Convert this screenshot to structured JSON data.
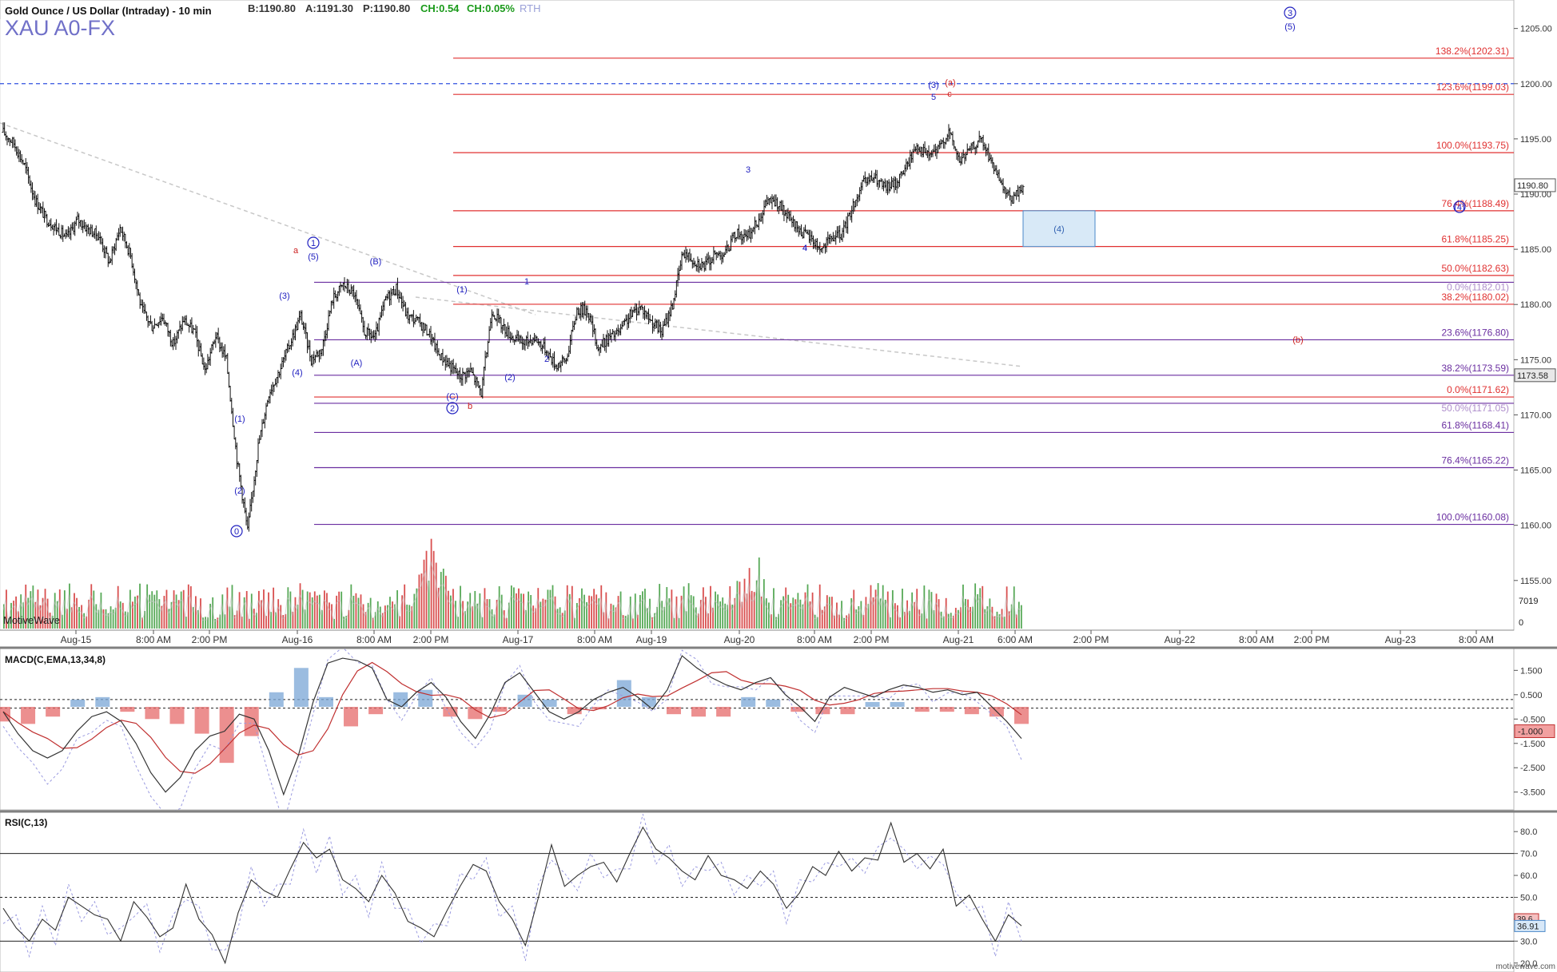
{
  "header": {
    "instrument": "Gold Ounce / US Dollar (Intraday) - 10 min",
    "symbol": "XAU A0-FX",
    "bid": "B:1190.80",
    "ask": "A:1191.30",
    "price": "P:1190.80",
    "change": "CH:0.54",
    "change_pct": "CH:0.05%",
    "session": "RTH",
    "watermark": "MotiveWave",
    "footer": "motivewave.com"
  },
  "colors": {
    "bullish": "#3a9a3a",
    "bearish": "#d23030",
    "fib_red": "#e03030",
    "fib_purple": "#6a2ea0",
    "wave_blue": "#2020c0",
    "wave_red": "#cc2020",
    "price_line": "#2050e0",
    "macd_up": "#7aa6d6",
    "macd_down": "#e56a6a",
    "box_fill": "#d8e9f7",
    "box_stroke": "#4a88c8"
  },
  "chart_data": [
    {
      "type": "candlestick",
      "title": "Gold Ounce / US Dollar (Intraday) - 10 min",
      "y_axis_side": "right",
      "ylim": [
        1150.5,
        1207
      ],
      "y_ticks": [
        "1155.00",
        "1160.00",
        "1165.00",
        "1170.00",
        "1175.00",
        "1180.00",
        "1185.00",
        "1190.00",
        "1195.00",
        "1200.00",
        "1205.00"
      ],
      "x_ticks": [
        "Aug-15",
        "8:00 AM",
        "2:00 PM",
        "Aug-16",
        "8:00 AM",
        "2:00 PM",
        "Aug-17",
        "8:00 AM",
        "Aug-19",
        "Aug-20",
        "8:00 AM",
        "2:00 PM",
        "Aug-21",
        "6:00 AM",
        "2:00 PM",
        "Aug-22",
        "8:00 AM",
        "2:00 PM",
        "Aug-23",
        "8:00 AM"
      ],
      "price_path": [
        1195.6,
        1194.6,
        1192.6,
        1189.5,
        1187.8,
        1186.9,
        1186.0,
        1187.7,
        1186.8,
        1186.2,
        1183.8,
        1187.0,
        1184.4,
        1179.6,
        1178.0,
        1178.9,
        1176.4,
        1178.6,
        1177.5,
        1174.0,
        1177.2,
        1175.0,
        1166.0,
        1159.5,
        1167.2,
        1172.0,
        1174.0,
        1176.5,
        1179.0,
        1175.0,
        1176.0,
        1180.5,
        1181.8,
        1181.0,
        1177.5,
        1177.0,
        1180.5,
        1181.5,
        1179.0,
        1178.5,
        1177.5,
        1175.5,
        1174.5,
        1173.5,
        1174.0,
        1172.0,
        1179.5,
        1178.0,
        1177.0,
        1176.5,
        1177.0,
        1176.0,
        1174.5,
        1175.0,
        1179.5,
        1179.5,
        1176.0,
        1177.0,
        1177.5,
        1179.0,
        1179.8,
        1178.5,
        1177.5,
        1180.0,
        1184.8,
        1184.0,
        1183.5,
        1184.5,
        1184.7,
        1186.5,
        1186.0,
        1187.5,
        1189.5,
        1189.0,
        1187.7,
        1186.7,
        1186.0,
        1185.0,
        1186.0,
        1186.4,
        1189.0,
        1191.0,
        1191.5,
        1190.5,
        1191.0,
        1192.5,
        1194.5,
        1193.5,
        1194.0,
        1195.7,
        1193.0,
        1194.0,
        1195.0,
        1193.0,
        1190.5,
        1189.5,
        1190.8
      ],
      "labels": [
        {
          "text": "1190.80",
          "kind": "last-price"
        },
        {
          "text": "1173.58",
          "kind": "line-value"
        },
        {
          "text": "7019",
          "kind": "volume"
        },
        {
          "text": "0",
          "kind": "volume-scale"
        }
      ],
      "fibonacci_red": [
        {
          "label": "138.2%(1202.31)",
          "value": 1202.31
        },
        {
          "label": "123.6%(1199.03)",
          "value": 1199.03
        },
        {
          "label": "100.0%(1193.75)",
          "value": 1193.75
        },
        {
          "label": "76.4%(1188.49)",
          "value": 1188.49
        },
        {
          "label": "61.8%(1185.25)",
          "value": 1185.25
        },
        {
          "label": "50.0%(1182.63)",
          "value": 1182.63
        },
        {
          "label": "38.2%(1180.02)",
          "value": 1180.02
        },
        {
          "label": "0.0%(1171.62)",
          "value": 1171.62
        }
      ],
      "fibonacci_purple": [
        {
          "label": "0.0%(1182.01)",
          "value": 1182.01
        },
        {
          "label": "23.6%(1176.80)",
          "value": 1176.8
        },
        {
          "label": "38.2%(1173.59)",
          "value": 1173.59
        },
        {
          "label": "50.0%(1171.05)",
          "value": 1171.05
        },
        {
          "label": "61.8%(1168.41)",
          "value": 1168.41
        },
        {
          "label": "76.4%(1165.22)",
          "value": 1165.22
        },
        {
          "label": "100.0%(1160.08)",
          "value": 1160.08
        }
      ],
      "reference_line": {
        "value": 1200.0,
        "style": "dashed"
      },
      "target_box": {
        "label": "(4)",
        "from": 1185.25,
        "to": 1188.49
      },
      "wave_labels": [
        "0",
        "(1)",
        "(2)",
        "(3)",
        "(4)",
        "(5)",
        "1",
        "a",
        "(A)",
        "(B)",
        "(C)",
        "2",
        "b",
        "(1)",
        "(2)",
        "1",
        "2",
        "3",
        "4",
        "(3)",
        "5",
        "(a)",
        "c",
        "(4)",
        "3",
        "(5)",
        "4",
        "(b)"
      ]
    },
    {
      "type": "line",
      "title": "MACD(C,EMA,13,34,8)",
      "series": [
        {
          "name": "MACD"
        },
        {
          "name": "Signal"
        },
        {
          "name": "Histogram"
        }
      ],
      "y_ticks": [
        "1.500",
        "0.500",
        "-0.500",
        "-1.500",
        "-2.500",
        "-3.500"
      ],
      "ylim": [
        -4.1,
        2.2
      ],
      "last_value": "-1.000",
      "macd_path": [
        -0.2,
        -1.1,
        -1.8,
        -2.1,
        -1.8,
        -1.0,
        -0.4,
        -0.2,
        -0.6,
        -1.5,
        -2.7,
        -3.5,
        -2.9,
        -1.8,
        -1.2,
        -1.0,
        -0.3,
        -0.5,
        -1.8,
        -3.6,
        -2.0,
        0.2,
        1.8,
        2.0,
        1.9,
        1.6,
        0.3,
        0.0,
        0.6,
        1.0,
        0.4,
        -0.6,
        -1.3,
        -0.3,
        1.0,
        1.4,
        0.6,
        -0.2,
        -0.5,
        -0.2,
        0.3,
        0.6,
        0.8,
        0.4,
        -0.1,
        0.7,
        2.1,
        1.6,
        1.2,
        0.9,
        0.7,
        1.0,
        1.2,
        0.5,
        0.0,
        -0.6,
        0.4,
        0.8,
        0.6,
        0.4,
        0.7,
        0.9,
        0.8,
        0.6,
        0.7,
        0.5,
        0.6,
        0.0,
        -0.6,
        -1.3
      ],
      "histogram": [
        -0.6,
        -0.7,
        -0.4,
        0.3,
        0.4,
        -0.2,
        -0.5,
        -0.7,
        -1.1,
        -2.3,
        -1.2,
        0.6,
        1.6,
        0.4,
        -0.8,
        -0.3,
        0.6,
        0.7,
        -0.4,
        -0.5,
        -0.2,
        0.5,
        0.3,
        -0.3,
        -0.1,
        1.1,
        0.4,
        -0.3,
        -0.4,
        -0.4,
        0.4,
        0.3,
        -0.2,
        -0.3,
        -0.3,
        0.2,
        0.2,
        -0.2,
        -0.2,
        -0.3,
        -0.4,
        -0.7
      ]
    },
    {
      "type": "line",
      "title": "RSI(C,13)",
      "series": [
        {
          "name": "RSI"
        },
        {
          "name": "Average"
        }
      ],
      "y_ticks": [
        "80.0",
        "70.0",
        "60.0",
        "50.0",
        "40.0",
        "30.0",
        "20.0"
      ],
      "ylim": [
        17,
        87
      ],
      "levels": [
        70,
        50,
        30
      ],
      "last_value": "36.91",
      "average_value": "39.6",
      "rsi_path": [
        45,
        36,
        30,
        40,
        35,
        50,
        46,
        42,
        40,
        30,
        48,
        41,
        32,
        36,
        56,
        40,
        33,
        20,
        43,
        58,
        53,
        50,
        63,
        75,
        68,
        72,
        58,
        54,
        48,
        60,
        52,
        39,
        36,
        32,
        44,
        55,
        65,
        62,
        48,
        40,
        28,
        50,
        74,
        55,
        60,
        64,
        66,
        57,
        70,
        82,
        72,
        68,
        62,
        58,
        69,
        60,
        58,
        54,
        62,
        56,
        45,
        52,
        64,
        60,
        71,
        62,
        68,
        67,
        84,
        66,
        70,
        63,
        72,
        46,
        51,
        40,
        30,
        42,
        37
      ]
    }
  ]
}
